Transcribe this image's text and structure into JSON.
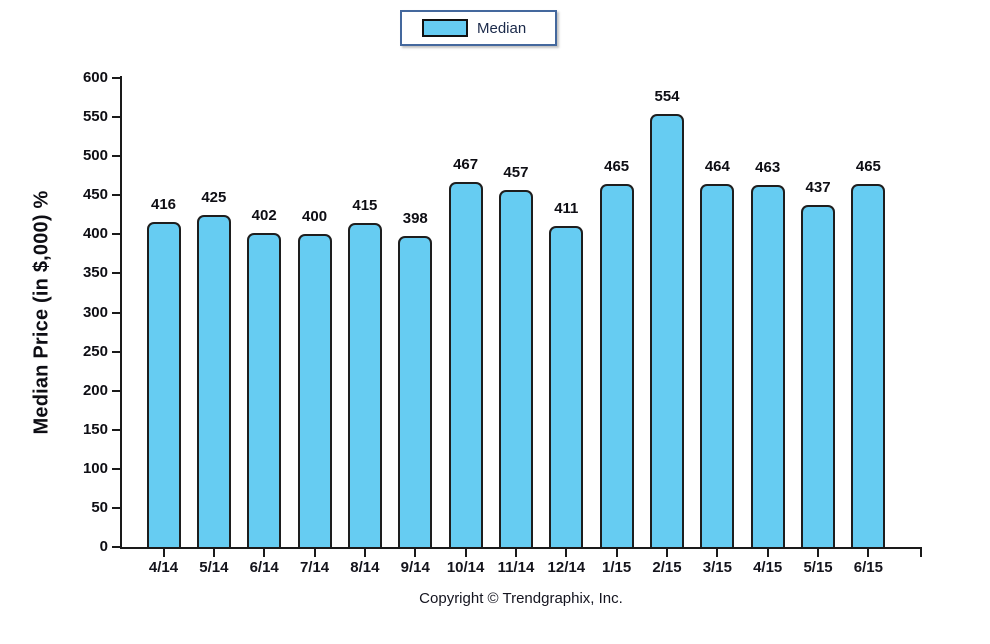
{
  "chart_data": {
    "type": "bar",
    "categories": [
      "4/14",
      "5/14",
      "6/14",
      "7/14",
      "8/14",
      "9/14",
      "10/14",
      "11/14",
      "12/14",
      "1/15",
      "2/15",
      "3/15",
      "4/15",
      "5/15",
      "6/15"
    ],
    "values": [
      416,
      425,
      402,
      400,
      415,
      398,
      467,
      457,
      411,
      465,
      554,
      464,
      463,
      437,
      465
    ],
    "title": "",
    "xlabel": "",
    "ylabel": "Median Price (in $,000) %",
    "ylim": [
      0,
      600
    ],
    "ytick_step": 50,
    "grid": false,
    "legend_position": "top-center",
    "series_name": "Median",
    "bar_color": "#66ccf2",
    "bar_border_color": "#1e1e1e"
  },
  "legend": {
    "label": "Median"
  },
  "footer": {
    "copyright": "Copyright © Trendgraphix, Inc."
  }
}
